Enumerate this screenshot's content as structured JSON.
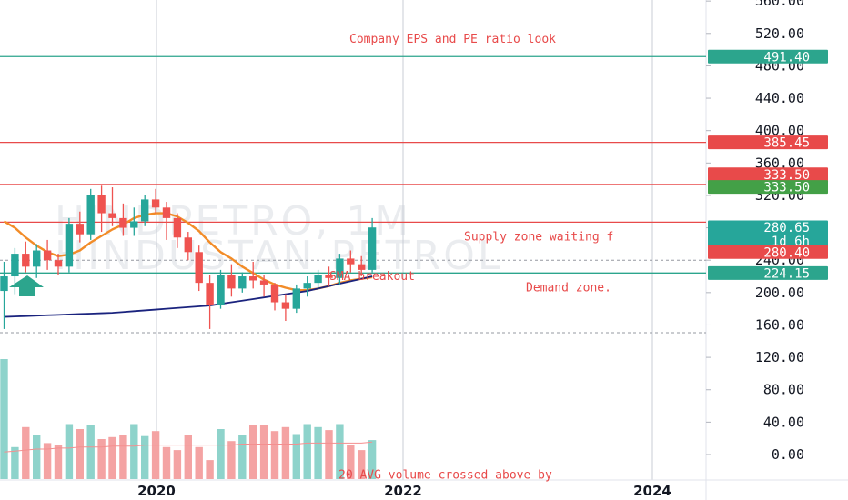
{
  "watermark": {
    "line1": "HINDPETRO, 1M",
    "line2": "HINDUSTAN PETROL"
  },
  "colors": {
    "up": "#26a69a",
    "down": "#ef5350",
    "up_vol": "#8ed3cb",
    "down_vol": "#f4a3a3",
    "red_line": "#e84a4a",
    "teal_line": "#2ca58d",
    "orange": "#f28c28",
    "navy": "#1a237e",
    "grid": "#c8ccd5",
    "note_red": "#e84a4a",
    "dashed": "#9598a1"
  },
  "chart_data": {
    "type": "candlestick",
    "price_axis": {
      "min": 0,
      "max": 560,
      "ticks": [
        "560.00",
        "520.00",
        "480.00",
        "440.00",
        "400.00",
        "360.00",
        "320.00",
        "280.00",
        "240.00",
        "200.00",
        "160.00",
        "120.00",
        "80.00",
        "40.00",
        "0.00"
      ]
    },
    "time_axis": {
      "ticks": [
        "2020",
        "2022",
        "2024"
      ]
    },
    "candles": [
      [
        202,
        238,
        155,
        220
      ],
      [
        220,
        255,
        198,
        248
      ],
      [
        248,
        263,
        225,
        232
      ],
      [
        232,
        260,
        218,
        252
      ],
      [
        252,
        265,
        228,
        240
      ],
      [
        240,
        248,
        222,
        232
      ],
      [
        232,
        292,
        225,
        285
      ],
      [
        285,
        300,
        262,
        272
      ],
      [
        272,
        328,
        265,
        320
      ],
      [
        320,
        332,
        275,
        298
      ],
      [
        298,
        330,
        282,
        292
      ],
      [
        292,
        310,
        270,
        280
      ],
      [
        280,
        305,
        270,
        288
      ],
      [
        288,
        320,
        282,
        315
      ],
      [
        315,
        328,
        298,
        305
      ],
      [
        305,
        312,
        265,
        292
      ],
      [
        292,
        298,
        255,
        268
      ],
      [
        268,
        275,
        240,
        250
      ],
      [
        250,
        258,
        202,
        212
      ],
      [
        212,
        222,
        155,
        185
      ],
      [
        185,
        228,
        180,
        222
      ],
      [
        222,
        235,
        195,
        205
      ],
      [
        205,
        225,
        200,
        220
      ],
      [
        220,
        238,
        205,
        215
      ],
      [
        215,
        222,
        195,
        210
      ],
      [
        210,
        212,
        178,
        188
      ],
      [
        188,
        198,
        165,
        180
      ],
      [
        180,
        210,
        175,
        205
      ],
      [
        205,
        220,
        195,
        212
      ],
      [
        212,
        228,
        205,
        222
      ],
      [
        222,
        232,
        208,
        218
      ],
      [
        218,
        248,
        210,
        242
      ],
      [
        242,
        252,
        225,
        235
      ],
      [
        235,
        245,
        220,
        228
      ],
      [
        228,
        292,
        225,
        280.4
      ]
    ],
    "volume": [
      120,
      32,
      52,
      44,
      36,
      34,
      55,
      50,
      54,
      40,
      42,
      44,
      55,
      43,
      48,
      32,
      29,
      44,
      32,
      19,
      50,
      38,
      44,
      54,
      54,
      48,
      52,
      45,
      55,
      52,
      49,
      55,
      34,
      29,
      39
    ],
    "sma_fast": [
      288,
      280,
      268,
      258,
      250,
      245,
      247,
      252,
      262,
      270,
      278,
      284,
      292,
      296,
      298,
      298,
      294,
      286,
      276,
      262,
      250,
      242,
      232,
      224,
      216,
      210,
      206,
      203,
      203,
      205,
      208,
      212,
      215,
      217,
      219
    ],
    "sma_slow": [
      170,
      170.5,
      171,
      171.5,
      172,
      172.5,
      173,
      173.5,
      174,
      174.5,
      175,
      176,
      177,
      178,
      179,
      180,
      181,
      182,
      183,
      184,
      186,
      188,
      190,
      192,
      194,
      196,
      198,
      200,
      202,
      205,
      208,
      211,
      214,
      217,
      220
    ],
    "vol_avg": [
      27,
      28,
      29,
      30,
      30,
      31,
      31,
      32,
      32,
      32,
      33,
      33,
      33,
      34,
      34,
      34,
      34,
      34,
      34,
      34,
      34,
      34,
      35,
      35,
      35,
      35,
      35,
      35,
      36,
      36,
      36,
      36,
      36,
      36,
      37
    ],
    "levels": [
      {
        "price": 491.4,
        "color": "#2ca58d",
        "label": "491.40"
      },
      {
        "price": 385.45,
        "color": "#e84a4a",
        "label": "385.45"
      },
      {
        "price": 333.5,
        "color": "#e84a4a",
        "label": "333.50"
      },
      {
        "price": 333.5,
        "color": "#26a69a",
        "label": "333.50",
        "tag_only": true
      },
      {
        "price": 287.0,
        "color": "#e84a4a",
        "label": "",
        "line_only": true
      },
      {
        "price": 224.15,
        "color": "#2ca58d",
        "label": "224.15"
      }
    ],
    "last_price": {
      "price": "280.65",
      "countdown": "1d 6h"
    },
    "prev_tag": "280.40",
    "annotations": [
      {
        "text": "Company EPS and PE ratio look",
        "price": 514,
        "color": "#e84a4a"
      },
      {
        "text": "Supply zone waiting f",
        "price": 270,
        "color": "#e84a4a"
      },
      {
        "text": "SMA breakout",
        "price": 221,
        "color": "#e84a4a"
      },
      {
        "text": "Demand zone.",
        "price": 207,
        "color": "#e84a4a"
      },
      {
        "text": "20 AVG volume crossed above by",
        "price": -24,
        "color": "#e84a4a"
      }
    ]
  }
}
